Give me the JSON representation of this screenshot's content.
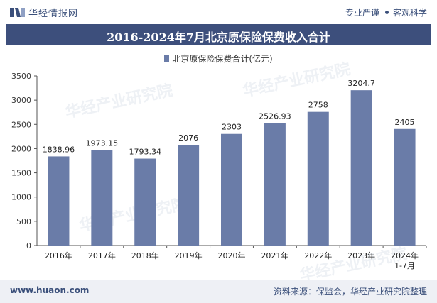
{
  "header": {
    "brand": "华经情报网",
    "slogan_left": "专业严谨",
    "slogan_right": "客观科学"
  },
  "title": "2016-2024年7月北京原保险保费收入合计",
  "legend": "北京原保险保费合计(亿元)",
  "footer": {
    "url": "www.huaon.com",
    "source": "资料来源：保监会，华经产业研究院整理"
  },
  "watermark": "华经产业研究院",
  "colors": {
    "bar": "#6a7ca8",
    "title_bg": "#3d4f7c",
    "footer_bg": "#eef0f5"
  },
  "chart_data": {
    "type": "bar",
    "title": "2016-2024年7月北京原保险保费收入合计",
    "categories": [
      "2016年",
      "2017年",
      "2018年",
      "2019年",
      "2020年",
      "2021年",
      "2022年",
      "2023年",
      "2024年\n1-7月"
    ],
    "series": [
      {
        "name": "北京原保险保费合计(亿元)",
        "values": [
          1838.96,
          1973.15,
          1793.34,
          2076,
          2303,
          2526.93,
          2758,
          3204.7,
          2405
        ],
        "labels": [
          "1838.96",
          "1973.15",
          "1793.34",
          "2076",
          "2303",
          "2526.93",
          "2758",
          "3204.7",
          "2405"
        ]
      }
    ],
    "ylim": [
      0,
      3500
    ],
    "yticks": [
      0,
      500,
      1000,
      1500,
      2000,
      2500,
      3000,
      3500
    ],
    "xlabel": "",
    "ylabel": "",
    "grid": false,
    "legend_position": "top-center"
  }
}
